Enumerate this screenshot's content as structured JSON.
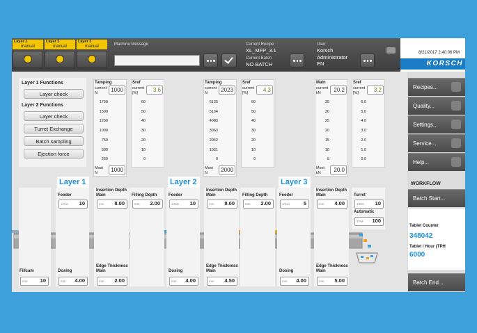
{
  "header": {
    "layers": [
      {
        "name": "Layer 1",
        "mode": "manual"
      },
      {
        "name": "Layer 2",
        "mode": "manual"
      },
      {
        "name": "Layer 3",
        "mode": "manual"
      }
    ],
    "machine_message_label": "Machine Message",
    "recipe_label": "Current Recipe",
    "recipe": "XL_MFP_3.1",
    "batch_label": "Current Batch",
    "batch": "NO BATCH",
    "user_label": "User",
    "user_name": "Korsch",
    "user_role": "Administrator",
    "user_lang": "EN",
    "datetime": "8/21/2017 2:40:06 PM",
    "logo": "KORSCH"
  },
  "functions": {
    "groups": [
      {
        "title": "Layer 1 Functions",
        "buttons": [
          "Layer check"
        ]
      },
      {
        "title": "Layer 2 Functions",
        "buttons": [
          "Layer check",
          "Turret Exchange",
          "Batch sampling",
          "Ejection force"
        ]
      }
    ]
  },
  "gauges": [
    {
      "title": "Tamping",
      "current_label": "current",
      "unit": "N",
      "value": "1000",
      "ticks": [
        "1750",
        "1500",
        "1250",
        "1000",
        "750",
        "500",
        "250"
      ],
      "set_label": "Mset",
      "set_unit": "N",
      "set_value": "1000"
    },
    {
      "title": "Sref",
      "current_label": "current",
      "unit": "[%]",
      "value": "3.6",
      "ticks": [
        "60",
        "50",
        "40",
        "30",
        "20",
        "10",
        "0"
      ]
    },
    {
      "title": "Tamping",
      "current_label": "current",
      "unit": "N",
      "value": "2023",
      "ticks": [
        "6125",
        "5104",
        "4083",
        "3063",
        "2042",
        "1021",
        "0"
      ],
      "set_label": "Mset",
      "set_unit": "N",
      "set_value": "2000"
    },
    {
      "title": "Sref",
      "current_label": "current",
      "unit": "[%]",
      "value": "4.3",
      "ticks": [
        "60",
        "50",
        "40",
        "30",
        "20",
        "10",
        "0"
      ]
    },
    {
      "title": "Main",
      "current_label": "current",
      "unit": "kN",
      "value": "20.2",
      "ticks": [
        "35",
        "30",
        "25",
        "20",
        "15",
        "10",
        "5"
      ],
      "set_label": "Mset",
      "set_unit": "kN",
      "set_value": "20.0"
    },
    {
      "title": "Sref",
      "current_label": "current",
      "unit": "[%]",
      "value": "3.2",
      "ticks": [
        "6.0",
        "5.0",
        "4.0",
        "3.0",
        "2.0",
        "1.0",
        "0.0"
      ]
    }
  ],
  "layers": [
    "Layer 1",
    "Layer 2",
    "Layer 3"
  ],
  "fields": [
    {
      "label": "Feeder",
      "unit": "1/min",
      "value": "10"
    },
    {
      "label": "Insertion Depth Main",
      "unit": "mm",
      "value": "8.00"
    },
    {
      "label": "Filling Depth",
      "unit": "mm",
      "value": "2.00"
    },
    {
      "label": "Feeder",
      "unit": "1/min",
      "value": "10"
    },
    {
      "label": "Insertion Depth Main",
      "unit": "mm",
      "value": "8.00"
    },
    {
      "label": "Filling Depth",
      "unit": "mm",
      "value": "2.00"
    },
    {
      "label": "Feeder",
      "unit": "1/min",
      "value": "5"
    },
    {
      "label": "Insertion Depth Main",
      "unit": "mm",
      "value": "4.00"
    },
    {
      "label": "Turret",
      "unit": "1/min",
      "value": "10"
    },
    {
      "label": "Automatic",
      "unit": "TPM",
      "value": "100"
    },
    {
      "label": "Fillcam",
      "unit": "mm",
      "value": "10"
    },
    {
      "label": "Dosing",
      "unit": "mm",
      "value": "4.00"
    },
    {
      "label": "Edge Thickness Main",
      "unit": "mm",
      "value": "2.00"
    },
    {
      "label": "Dosing",
      "unit": "mm",
      "value": "4.00"
    },
    {
      "label": "Edge Thickness Main",
      "unit": "mm",
      "value": "4.50"
    },
    {
      "label": "Dosing",
      "unit": "mm",
      "value": "4.00"
    },
    {
      "label": "Edge Thickness Main",
      "unit": "mm",
      "value": "5.00"
    }
  ],
  "sidebar": {
    "menu": [
      "Recipes...",
      "Quality...",
      "Settings...",
      "Service...",
      "Help..."
    ],
    "workflow": "WORKFLOW",
    "batch_start": "Batch Start...",
    "counter_label": "Tablet Counter",
    "counter": "348042",
    "tph_label": "Tablet / Hour (TPH",
    "tph": "6000",
    "batch_end": "Batch End..."
  }
}
